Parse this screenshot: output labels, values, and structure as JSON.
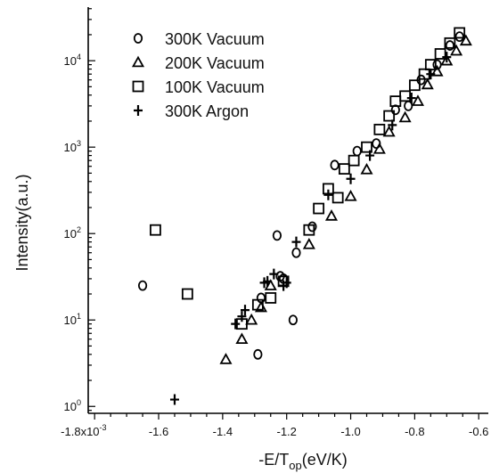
{
  "chart_data": {
    "type": "scatter",
    "xlabel": "-E/T",
    "xlabel_sub": "op",
    "xlabel_units": "(eV/K)",
    "ylabel": "Intensity(a.u.)",
    "xlim": [
      -1.82,
      -0.57
    ],
    "ylim_log10": [
      -0.08,
      4.62
    ],
    "y_scale": "log",
    "x_multiplier_label": "x10",
    "x_multiplier_exp": "-3",
    "x_ticks": [
      {
        "value": -1.8,
        "label": "-1.8"
      },
      {
        "value": -1.6,
        "label": "-1.6"
      },
      {
        "value": -1.4,
        "label": "-1.4"
      },
      {
        "value": -1.2,
        "label": "-1.2"
      },
      {
        "value": -1.0,
        "label": "-1.0"
      },
      {
        "value": -0.8,
        "label": "-0.8"
      },
      {
        "value": -0.6,
        "label": "-0.6"
      }
    ],
    "y_ticks": [
      {
        "exp": 0,
        "base": "10",
        "sup": "0"
      },
      {
        "exp": 1,
        "base": "10",
        "sup": "1"
      },
      {
        "exp": 2,
        "base": "10",
        "sup": "2"
      },
      {
        "exp": 3,
        "base": "10",
        "sup": "3"
      },
      {
        "exp": 4,
        "base": "10",
        "sup": "4"
      }
    ],
    "legend_position": "top-left",
    "series": [
      {
        "name": "300K Vacuum",
        "marker": "circle",
        "points": [
          [
            -1.65,
            25
          ],
          [
            -1.29,
            4
          ],
          [
            -1.28,
            18
          ],
          [
            -1.23,
            95
          ],
          [
            -1.22,
            32
          ],
          [
            -1.21,
            30
          ],
          [
            -1.18,
            10
          ],
          [
            -1.17,
            60
          ],
          [
            -1.12,
            120
          ],
          [
            -1.05,
            620
          ],
          [
            -0.98,
            900
          ],
          [
            -0.92,
            1100
          ],
          [
            -0.86,
            2700
          ],
          [
            -0.82,
            3000
          ],
          [
            -0.78,
            6000
          ],
          [
            -0.73,
            9000
          ],
          [
            -0.69,
            15000
          ],
          [
            -0.66,
            19000
          ]
        ]
      },
      {
        "name": "200K Vacuum",
        "marker": "triangle",
        "points": [
          [
            -1.39,
            3.5
          ],
          [
            -1.34,
            6
          ],
          [
            -1.31,
            10
          ],
          [
            -1.28,
            14
          ],
          [
            -1.25,
            25
          ],
          [
            -1.13,
            75
          ],
          [
            -1.06,
            160
          ],
          [
            -1.0,
            270
          ],
          [
            -0.95,
            550
          ],
          [
            -0.91,
            950
          ],
          [
            -0.88,
            1500
          ],
          [
            -0.83,
            2200
          ],
          [
            -0.79,
            3400
          ],
          [
            -0.76,
            5300
          ],
          [
            -0.73,
            7500
          ],
          [
            -0.7,
            10000
          ],
          [
            -0.67,
            13000
          ],
          [
            -0.64,
            17000
          ]
        ]
      },
      {
        "name": "100K Vacuum",
        "marker": "square",
        "points": [
          [
            -1.61,
            110
          ],
          [
            -1.51,
            20
          ],
          [
            -1.34,
            9
          ],
          [
            -1.29,
            15
          ],
          [
            -1.25,
            18
          ],
          [
            -1.21,
            28
          ],
          [
            -1.13,
            110
          ],
          [
            -1.1,
            195
          ],
          [
            -1.07,
            330
          ],
          [
            -1.04,
            260
          ],
          [
            -1.02,
            560
          ],
          [
            -0.99,
            700
          ],
          [
            -0.95,
            1000
          ],
          [
            -0.91,
            1600
          ],
          [
            -0.88,
            2300
          ],
          [
            -0.86,
            3400
          ],
          [
            -0.83,
            3900
          ],
          [
            -0.8,
            5200
          ],
          [
            -0.77,
            7000
          ],
          [
            -0.75,
            9000
          ],
          [
            -0.72,
            12000
          ],
          [
            -0.69,
            16000
          ],
          [
            -0.66,
            21000
          ]
        ]
      },
      {
        "name": "300K Argon",
        "marker": "plus",
        "points": [
          [
            -1.55,
            1.2
          ],
          [
            -1.36,
            9
          ],
          [
            -1.34,
            11
          ],
          [
            -1.33,
            13
          ],
          [
            -1.27,
            27
          ],
          [
            -1.26,
            28
          ],
          [
            -1.24,
            34
          ],
          [
            -1.21,
            25
          ],
          [
            -1.2,
            27
          ],
          [
            -1.17,
            80
          ],
          [
            -1.07,
            280
          ],
          [
            -1.0,
            430
          ],
          [
            -0.94,
            800
          ],
          [
            -0.87,
            1800
          ],
          [
            -0.81,
            3700
          ],
          [
            -0.75,
            7000
          ],
          [
            -0.7,
            11000
          ]
        ]
      }
    ]
  }
}
